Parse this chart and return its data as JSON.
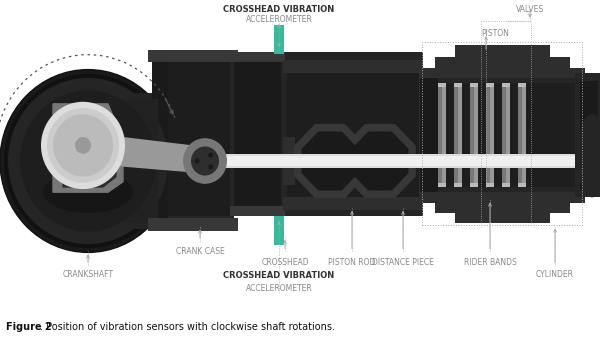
{
  "fig_width": 6.0,
  "fig_height": 3.5,
  "dpi": 100,
  "bg_color": "#ffffff",
  "title_caption": "Figure 2",
  "caption_text": ". Position of vibration sensors with clockwise shaft rotations.",
  "top_label_bold": "CROSSHEAD VIBRATION",
  "top_label_normal": "ACCELEROMETER",
  "bottom_label_bold": "CROSSHEAD VIBRATION",
  "bottom_label_normal": "ACCELEROMETER",
  "dark1": "#1a1a1a",
  "dark2": "#252525",
  "dark3": "#2e2e2e",
  "dark4": "#383838",
  "gray1": "#555555",
  "gray2": "#777777",
  "gray3": "#999999",
  "gray4": "#bbbbbb",
  "gray5": "#cccccc",
  "gray6": "#dddddd",
  "white": "#f0f0f0",
  "green": "#3ab89a",
  "label_color": "#888888",
  "bold_label_color": "#333333",
  "caption_color": "#111111",
  "arrow_color": "#aaaaaa"
}
